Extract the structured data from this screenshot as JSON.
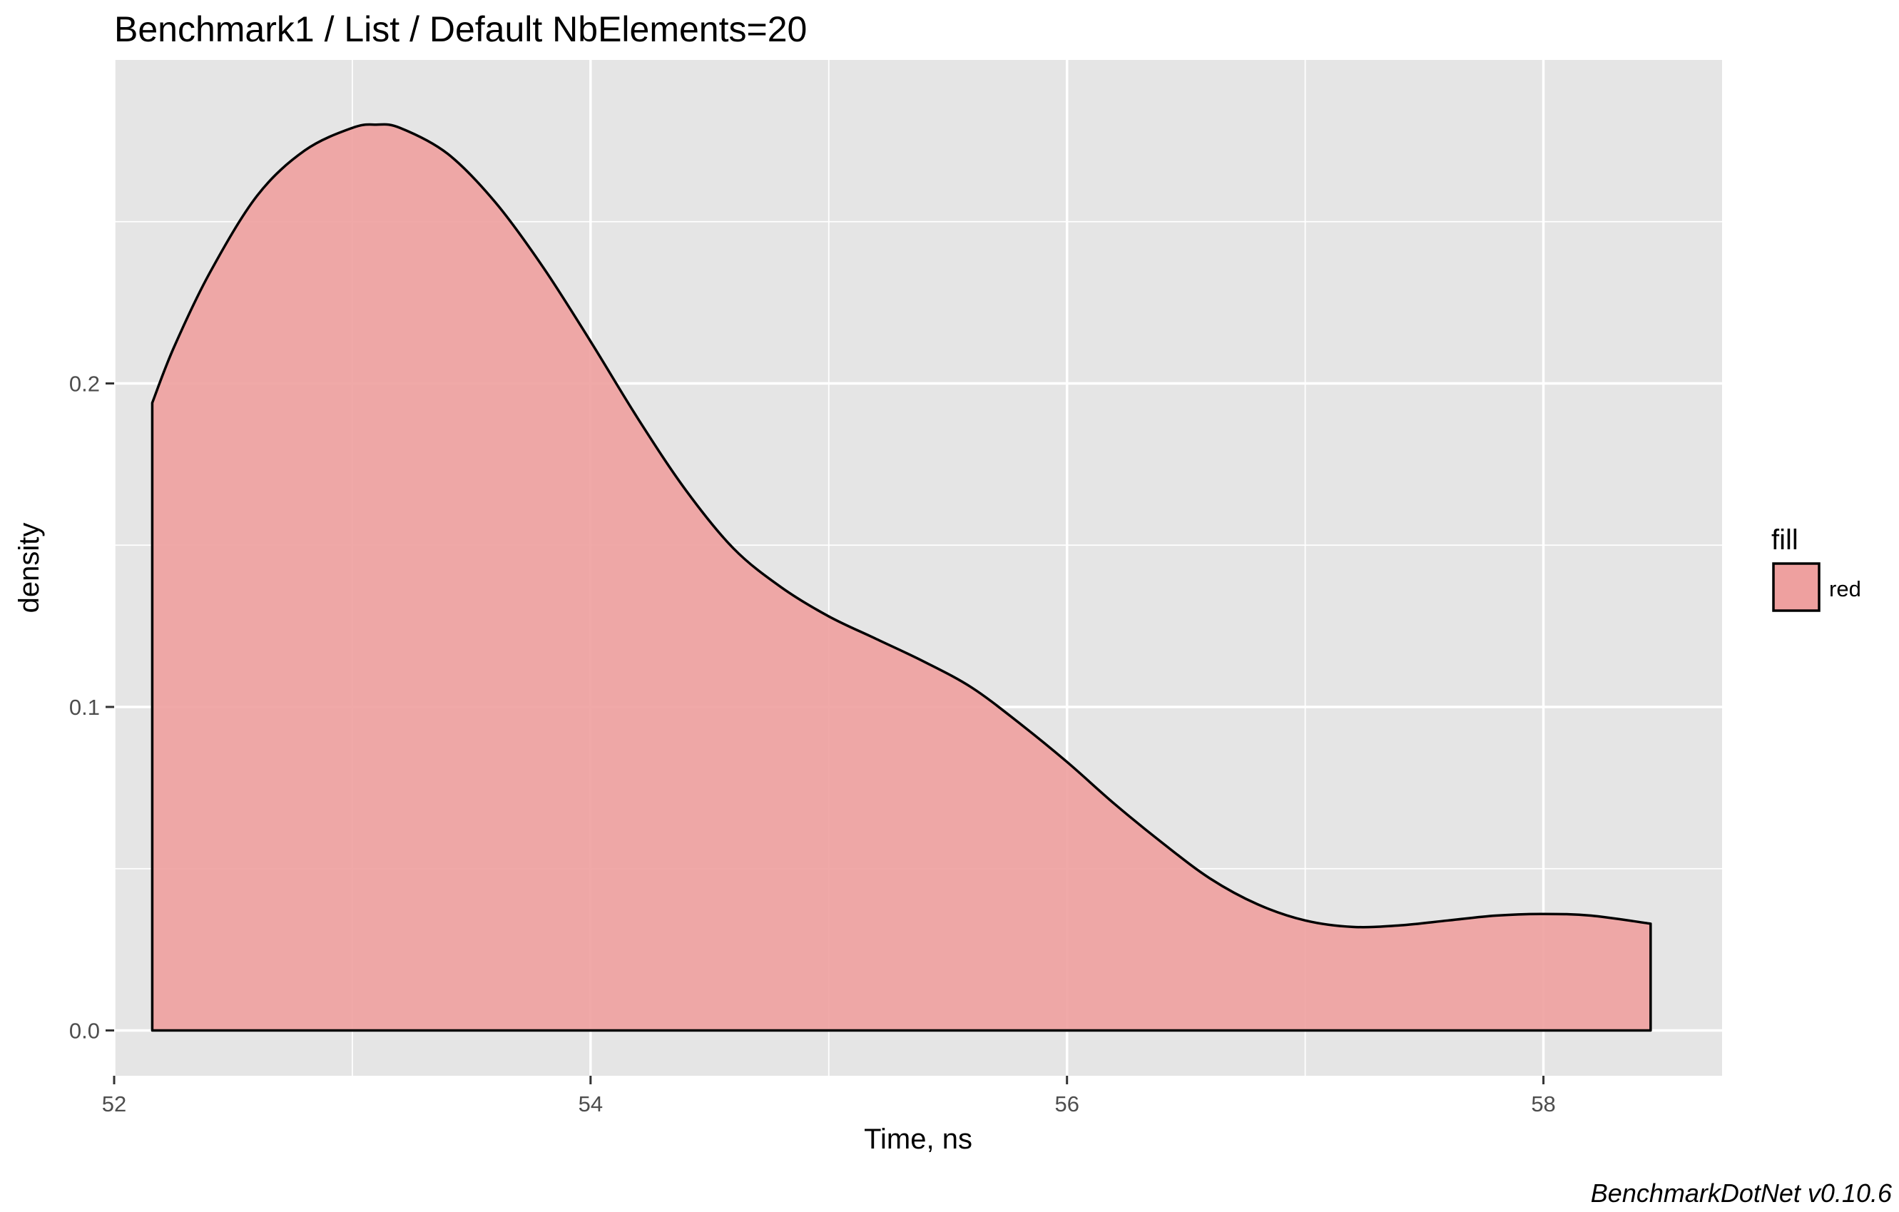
{
  "chart_data": {
    "type": "area",
    "subtype": "density",
    "title": "Benchmark1 / List / Default NbElements=20",
    "xlabel": "Time, ns",
    "ylabel": "density",
    "caption": "BenchmarkDotNet v0.10.6",
    "xlim": [
      52.0,
      58.75
    ],
    "ylim": [
      -0.014,
      0.3
    ],
    "x_ticks": [
      52,
      54,
      56,
      58
    ],
    "x_tick_labels": [
      "52",
      "54",
      "56",
      "58"
    ],
    "y_ticks": [
      0.0,
      0.1,
      0.2
    ],
    "y_tick_labels": [
      "0.0",
      "0.1",
      "0.2"
    ],
    "grid": true,
    "legend": {
      "title": "fill",
      "placement": "right",
      "entries": [
        {
          "label": "red",
          "color": "#eea09f"
        }
      ]
    },
    "colors": {
      "panel_background": "#e5e5e5",
      "grid_line": "#ffffff",
      "area_fill": "#eea09f",
      "outline": "#000000"
    },
    "series": [
      {
        "x": [
          52.16,
          52.25,
          52.4,
          52.6,
          52.8,
          53.0,
          53.1,
          53.2,
          53.4,
          53.6,
          53.8,
          54.0,
          54.2,
          54.4,
          54.6,
          54.8,
          55.0,
          55.2,
          55.4,
          55.6,
          55.8,
          56.0,
          56.2,
          56.4,
          56.6,
          56.8,
          57.0,
          57.2,
          57.4,
          57.6,
          57.8,
          58.0,
          58.2,
          58.45
        ],
        "y": [
          0.194,
          0.211,
          0.234,
          0.258,
          0.272,
          0.279,
          0.28,
          0.279,
          0.271,
          0.256,
          0.236,
          0.213,
          0.189,
          0.167,
          0.149,
          0.137,
          0.128,
          0.121,
          0.114,
          0.106,
          0.095,
          0.083,
          0.07,
          0.058,
          0.047,
          0.039,
          0.034,
          0.032,
          0.0325,
          0.034,
          0.0355,
          0.036,
          0.0355,
          0.033
        ]
      }
    ]
  }
}
